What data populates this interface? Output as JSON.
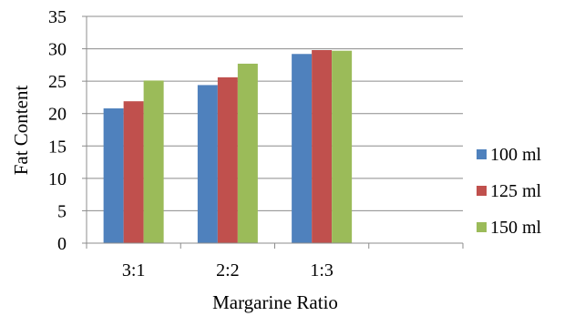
{
  "chart_data": {
    "type": "bar",
    "categories": [
      "3:1",
      "2:2",
      "1:3",
      ""
    ],
    "series": [
      {
        "name": "100 ml",
        "color": "#4F81BD",
        "values": [
          20.8,
          24.4,
          29.2,
          null
        ]
      },
      {
        "name": "125 ml",
        "color": "#C0504D",
        "values": [
          21.9,
          25.6,
          29.8,
          null
        ]
      },
      {
        "name": "150 ml",
        "color": "#9BBB59",
        "values": [
          25.1,
          27.7,
          29.7,
          null
        ]
      }
    ],
    "title": "",
    "xlabel": "Margarine Ratio",
    "ylabel": "Fat Content",
    "ylim": [
      0,
      35
    ],
    "yticks": [
      0,
      5,
      10,
      15,
      20,
      25,
      30,
      35
    ],
    "grid": true,
    "legend": "right"
  }
}
